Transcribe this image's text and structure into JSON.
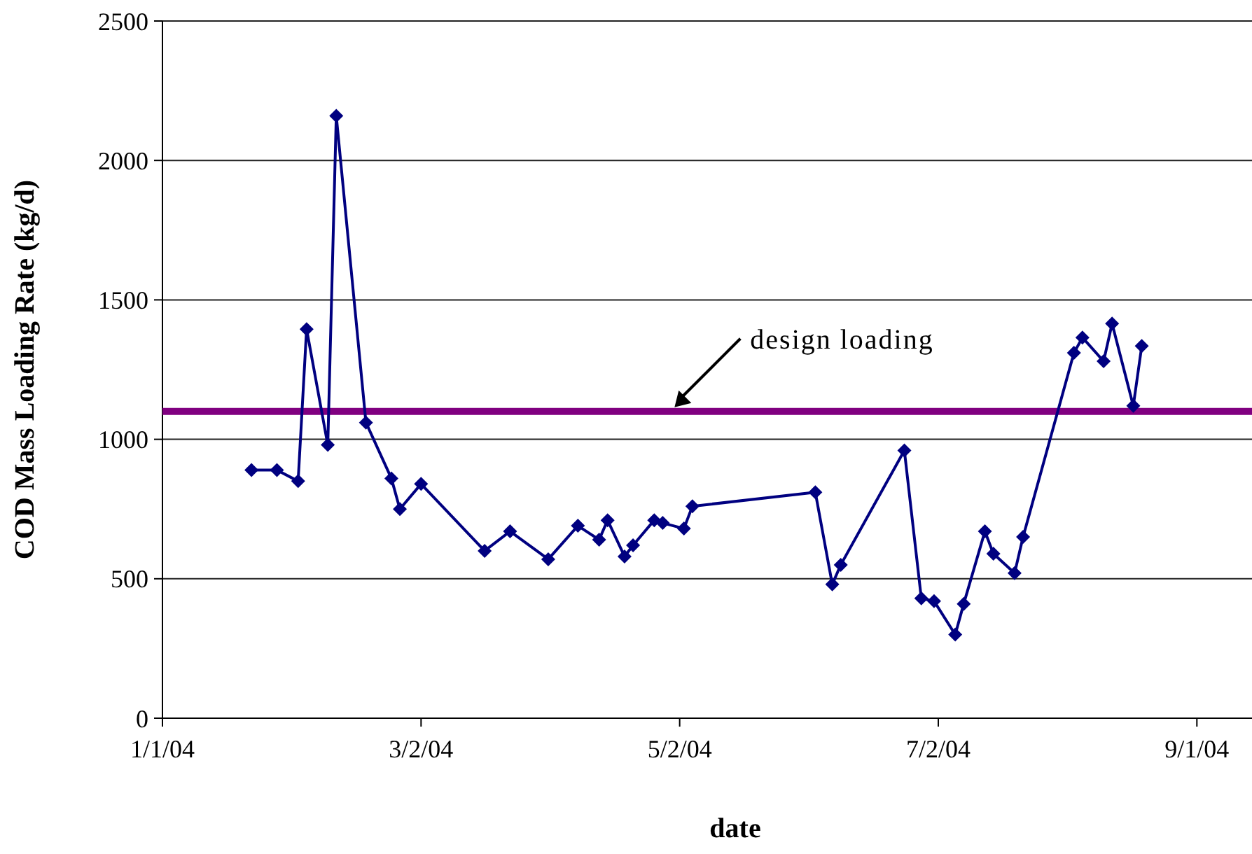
{
  "chart_data": {
    "type": "line",
    "xlabel": "date",
    "ylabel": "COD Mass Loading Rate (kg/d)",
    "x": [
      "2004-01-22",
      "2004-01-28",
      "2004-02-02",
      "2004-02-04",
      "2004-02-09",
      "2004-02-11",
      "2004-02-18",
      "2004-02-24",
      "2004-02-26",
      "2004-03-02",
      "2004-03-17",
      "2004-03-23",
      "2004-04-01",
      "2004-04-08",
      "2004-04-13",
      "2004-04-15",
      "2004-04-19",
      "2004-04-21",
      "2004-04-26",
      "2004-04-28",
      "2004-05-03",
      "2004-05-05",
      "2004-06-03",
      "2004-06-07",
      "2004-06-09",
      "2004-06-24",
      "2004-06-28",
      "2004-07-01",
      "2004-07-06",
      "2004-07-08",
      "2004-07-13",
      "2004-07-15",
      "2004-07-20",
      "2004-07-22",
      "2004-08-03",
      "2004-08-05",
      "2004-08-10",
      "2004-08-12",
      "2004-08-17",
      "2004-08-19"
    ],
    "series": [
      {
        "color": "#000080",
        "values": [
          890,
          890,
          850,
          1395,
          980,
          2160,
          1060,
          860,
          750,
          840,
          600,
          670,
          570,
          690,
          640,
          710,
          580,
          620,
          710,
          700,
          680,
          760,
          810,
          480,
          550,
          960,
          430,
          420,
          300,
          410,
          670,
          590,
          520,
          650,
          1310,
          1365,
          1280,
          1415,
          1120,
          1335
        ]
      }
    ],
    "marker": "diamond",
    "line_style": "solid",
    "grid": "y",
    "xlim": [
      "2004-01-01",
      "2004-09-14"
    ],
    "xticks": [
      {
        "value": "2004-01-01",
        "label": "1/1/04"
      },
      {
        "value": "2004-03-02",
        "label": "3/2/04"
      },
      {
        "value": "2004-05-02",
        "label": "5/2/04"
      },
      {
        "value": "2004-07-02",
        "label": "7/2/04"
      },
      {
        "value": "2004-09-01",
        "label": "9/1/04"
      }
    ],
    "ylim": [
      0,
      2500
    ],
    "yticks": [
      0,
      500,
      1000,
      1500,
      2000,
      2500
    ],
    "ref_lines": [
      {
        "axis": "y",
        "value": 1100,
        "label": "design loading",
        "color": "#800080",
        "line_style": "solid"
      }
    ]
  }
}
